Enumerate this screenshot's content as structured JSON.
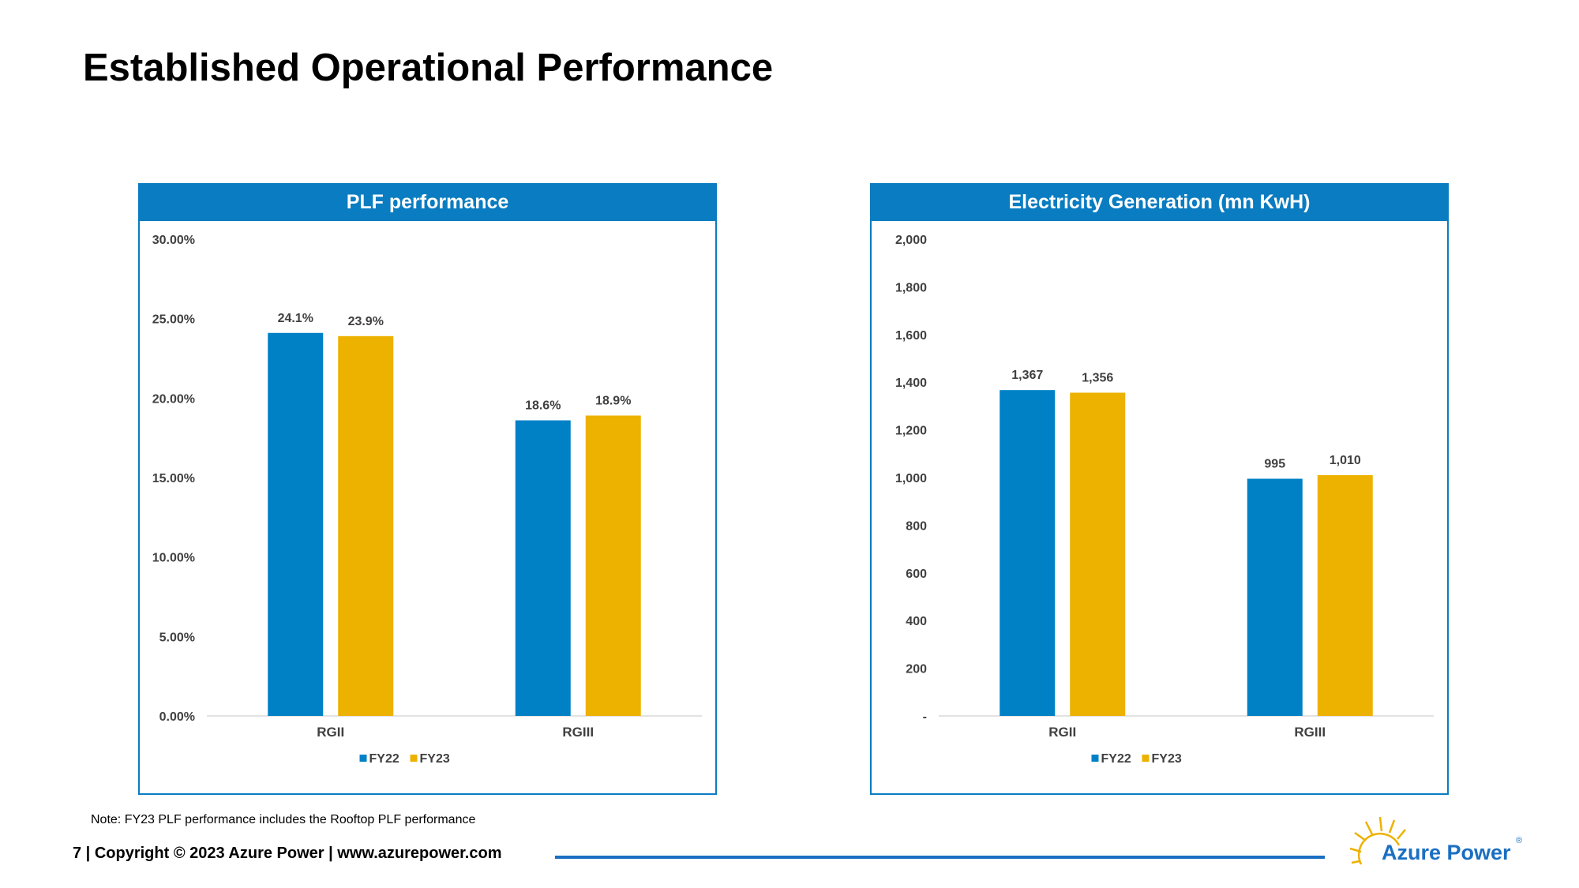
{
  "page": {
    "title": "Established Operational Performance",
    "note": "Note: FY23 PLF performance includes the Rooftop PLF performance",
    "footer": "7 | Copyright © 2023 Azure Power | www.azurepower.com"
  },
  "logo": {
    "name": "Azure Power",
    "registered": "®",
    "icon": "sun-icon"
  },
  "colors": {
    "accent_blue": "#0a7cc1",
    "fy22": "#0081C6",
    "fy23": "#EDB100",
    "footer_rule": "#1a6fc2"
  },
  "chart_data": [
    {
      "type": "bar",
      "title": "PLF performance",
      "categories": [
        "RGII",
        "RGIII"
      ],
      "series": [
        {
          "name": "FY22",
          "values": [
            24.1,
            18.6
          ],
          "labels": [
            "24.1%",
            "18.6%"
          ]
        },
        {
          "name": "FY23",
          "values": [
            23.9,
            18.9
          ],
          "labels": [
            "23.9%",
            "18.9%"
          ]
        }
      ],
      "ylim": [
        0,
        30
      ],
      "yticks": [
        0,
        5,
        10,
        15,
        20,
        25,
        30
      ],
      "ytick_labels": [
        "0.00%",
        "5.00%",
        "10.00%",
        "15.00%",
        "20.00%",
        "25.00%",
        "30.00%"
      ],
      "xlabel": "",
      "ylabel": "",
      "grid": false,
      "legend": "bottom"
    },
    {
      "type": "bar",
      "title": "Electricity Generation (mn KwH)",
      "categories": [
        "RGII",
        "RGIII"
      ],
      "series": [
        {
          "name": "FY22",
          "values": [
            1367,
            995
          ],
          "labels": [
            "1,367",
            "995"
          ]
        },
        {
          "name": "FY23",
          "values": [
            1356,
            1010
          ],
          "labels": [
            "1,356",
            "1,010"
          ]
        }
      ],
      "ylim": [
        0,
        2000
      ],
      "yticks": [
        0,
        200,
        400,
        600,
        800,
        1000,
        1200,
        1400,
        1600,
        1800,
        2000
      ],
      "ytick_labels": [
        "-",
        "200",
        "400",
        "600",
        "800",
        "1,000",
        "1,200",
        "1,400",
        "1,600",
        "1,800",
        "2,000"
      ],
      "xlabel": "",
      "ylabel": "",
      "grid": false,
      "legend": "bottom"
    }
  ]
}
